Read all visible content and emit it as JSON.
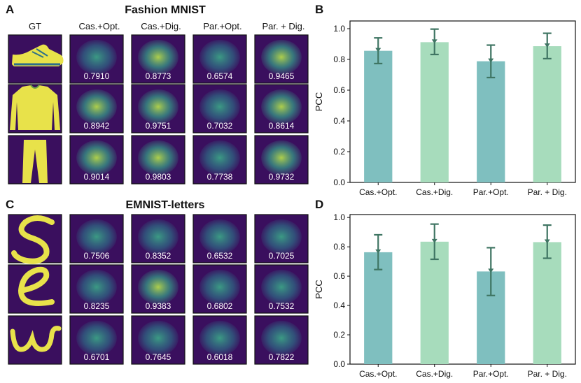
{
  "panels": {
    "a": {
      "letter": "A",
      "title": "Fashion MNIST"
    },
    "b": {
      "letter": "B"
    },
    "c": {
      "letter": "C",
      "title": "EMNIST-letters"
    },
    "d": {
      "letter": "D"
    }
  },
  "columns": [
    "GT",
    "Cas.+Opt.",
    "Cas.+Dig.",
    "Par.+Opt.",
    "Par. + Dig."
  ],
  "fashion_values": [
    [
      "0.7910",
      "0.8773",
      "0.6574",
      "0.9465"
    ],
    [
      "0.8942",
      "0.9751",
      "0.7032",
      "0.8614"
    ],
    [
      "0.9014",
      "0.9803",
      "0.7738",
      "0.9732"
    ]
  ],
  "emnist_values": [
    [
      "0.7506",
      "0.8352",
      "0.6532",
      "0.7025"
    ],
    [
      "0.8235",
      "0.9383",
      "0.6802",
      "0.7532"
    ],
    [
      "0.6701",
      "0.7645",
      "0.6018",
      "0.7822"
    ]
  ],
  "colors": {
    "teal": "#7fbfbf",
    "mint": "#a7dcbc",
    "error": "#3f7563",
    "bg": "#3a0f5e",
    "fg": "#e8e24a"
  },
  "chart_data": [
    {
      "type": "bar",
      "panel": "B",
      "categories": [
        "Cas.+Opt.",
        "Cas.+Dig.",
        "Par.+Opt.",
        "Par. + Dig."
      ],
      "values": [
        0.856,
        0.912,
        0.788,
        0.886
      ],
      "error_low": [
        0.773,
        0.832,
        0.682,
        0.805
      ],
      "error_high": [
        0.94,
        0.997,
        0.893,
        0.97
      ],
      "ylabel": "PCC",
      "ylim": [
        0,
        1.05
      ],
      "yticks": [
        "0.0",
        "0.2",
        "0.4",
        "0.6",
        "0.8",
        "1.0"
      ],
      "grid": false
    },
    {
      "type": "bar",
      "panel": "D",
      "categories": [
        "Cas.+Opt.",
        "Cas.+Dig.",
        "Par.+Opt.",
        "Par. + Dig."
      ],
      "values": [
        0.763,
        0.835,
        0.632,
        0.832
      ],
      "error_low": [
        0.645,
        0.715,
        0.468,
        0.722
      ],
      "error_high": [
        0.882,
        0.955,
        0.794,
        0.948
      ],
      "ylabel": "PCC",
      "ylim": [
        0,
        1.02
      ],
      "yticks": [
        "0.0",
        "0.2",
        "0.4",
        "0.6",
        "0.8",
        "1.0"
      ],
      "grid": false
    }
  ]
}
